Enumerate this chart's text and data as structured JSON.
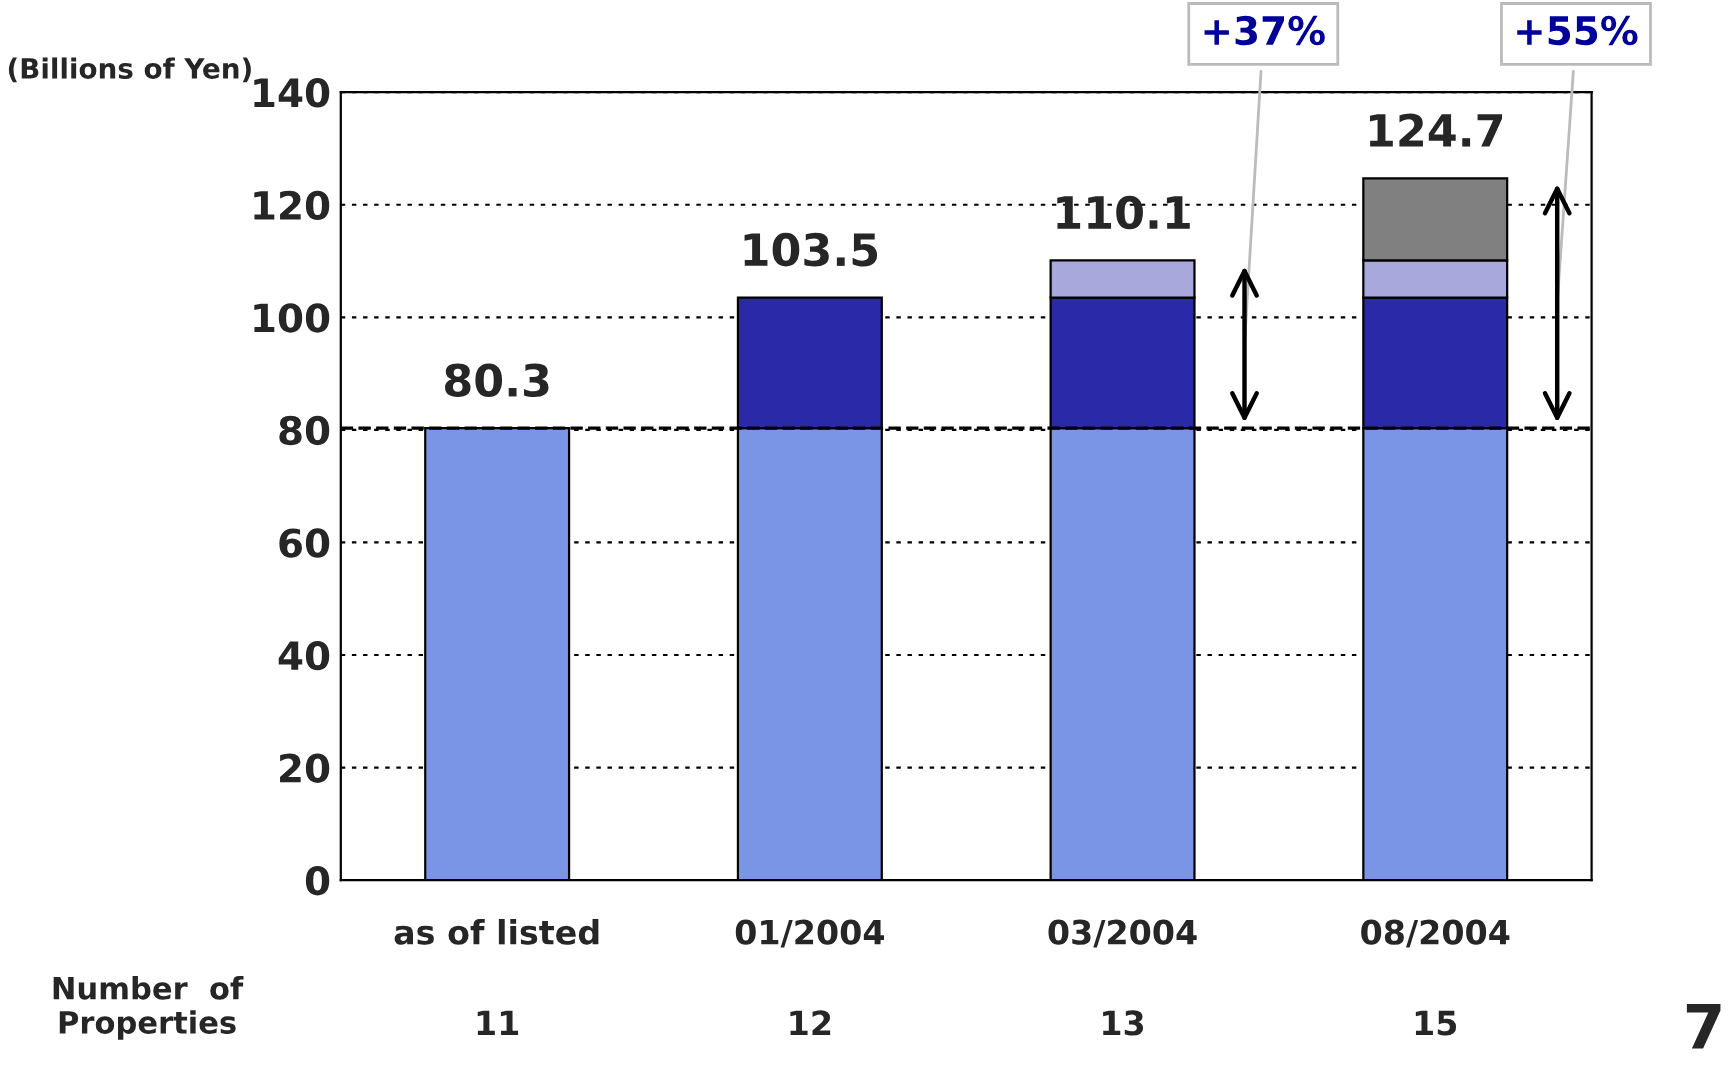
{
  "chart_data": {
    "type": "bar",
    "stacked": true,
    "ylabel": "(Billions of Yen)",
    "categories": [
      "as of listed",
      "01/2004",
      "03/2004",
      "08/2004"
    ],
    "series": [
      {
        "color": "#7a95e6",
        "values": [
          80.3,
          80.3,
          80.3,
          80.3
        ]
      },
      {
        "color": "#2a2aa8",
        "values": [
          null,
          23.2,
          23.2,
          23.2
        ]
      },
      {
        "color": "#a8a8dc",
        "values": [
          null,
          null,
          6.6,
          6.6
        ]
      },
      {
        "color": "#808080",
        "values": [
          null,
          null,
          null,
          14.6
        ]
      }
    ],
    "totals": [
      "80.3",
      "103.5",
      "110.1",
      "124.7"
    ],
    "ylim": [
      0,
      140
    ],
    "yticks": [
      0,
      20,
      40,
      60,
      80,
      100,
      120,
      140
    ],
    "grid": "y",
    "ref_lines": [
      {
        "axis": "y",
        "value": 80.3,
        "line_style": "dashed",
        "color": "#000000"
      }
    ],
    "annotations": [
      "+37%",
      "+55%",
      "Number  of Properties",
      "11",
      "12",
      "13",
      "15",
      "7"
    ]
  }
}
